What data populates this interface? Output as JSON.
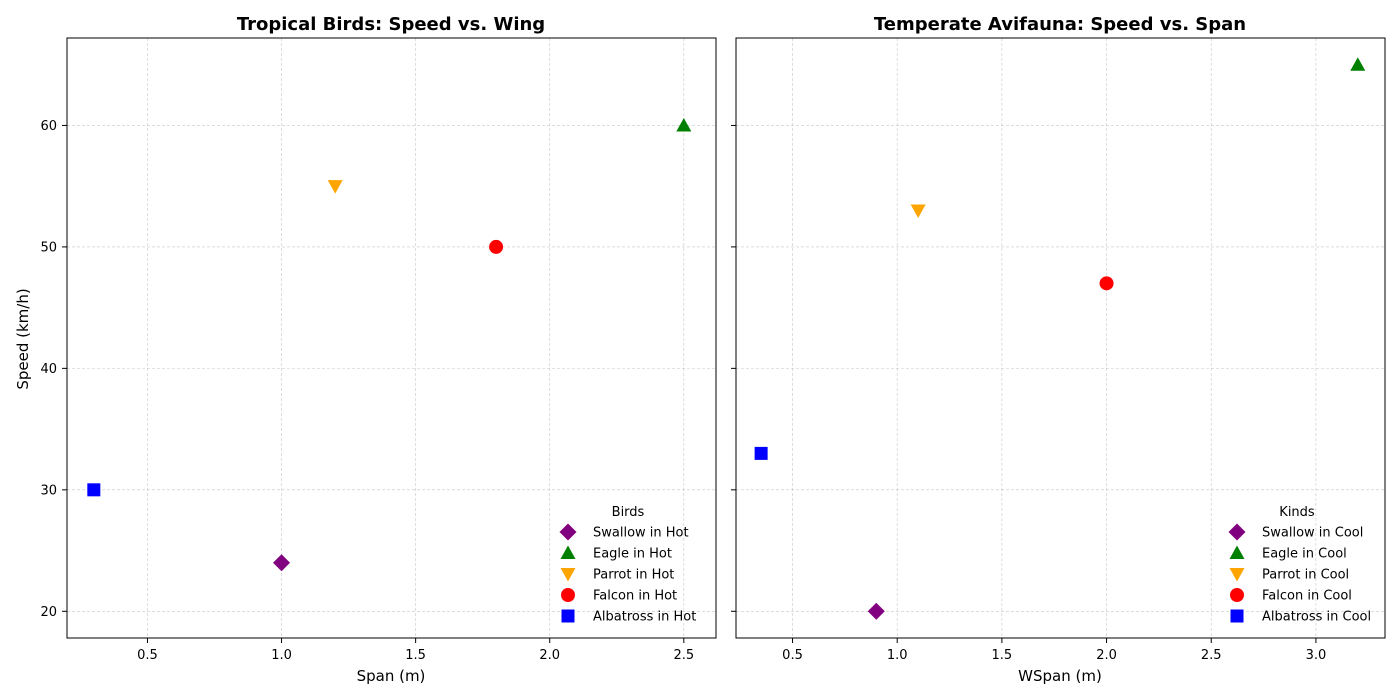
{
  "chart_data": [
    {
      "type": "scatter",
      "title": "Tropical Birds: Speed vs. Wing",
      "xlabel": "Span (m)",
      "ylabel": "Speed (km/h)",
      "xlim": [
        0.2,
        2.62
      ],
      "ylim": [
        17.8,
        67.2
      ],
      "xticks": [
        "0.5",
        "1.0",
        "1.5",
        "2.0",
        "2.5"
      ],
      "yticks": [
        "20",
        "30",
        "40",
        "50",
        "60"
      ],
      "grid": true,
      "legend": {
        "title": "Birds",
        "placement": "lower-right"
      },
      "series": [
        {
          "name": "Swallow in Hot",
          "marker": "diamond",
          "color": "#800080",
          "points": [
            [
              1.0,
              24
            ]
          ]
        },
        {
          "name": "Eagle in Hot",
          "marker": "triangle-up",
          "color": "#008000",
          "points": [
            [
              2.5,
              60
            ]
          ]
        },
        {
          "name": "Parrot in Hot",
          "marker": "triangle-down",
          "color": "#FFA500",
          "points": [
            [
              1.2,
              55
            ]
          ]
        },
        {
          "name": "Falcon in Hot",
          "marker": "circle",
          "color": "#FF0000",
          "points": [
            [
              1.8,
              50
            ]
          ]
        },
        {
          "name": "Albatross in Hot",
          "marker": "square",
          "color": "#0000FF",
          "points": [
            [
              0.3,
              30
            ]
          ]
        }
      ]
    },
    {
      "type": "scatter",
      "title": "Temperate Avifauna: Speed vs. Span",
      "xlabel": "WSpan (m)",
      "ylabel": "",
      "xlim": [
        0.23,
        3.33
      ],
      "ylim": [
        17.8,
        67.2
      ],
      "xticks": [
        "0.5",
        "1.0",
        "1.5",
        "2.0",
        "2.5",
        "3.0"
      ],
      "yticks": [
        "20",
        "30",
        "40",
        "50",
        "60"
      ],
      "grid": true,
      "legend": {
        "title": "Kinds",
        "placement": "lower-right"
      },
      "series": [
        {
          "name": "Swallow in Cool",
          "marker": "diamond",
          "color": "#800080",
          "points": [
            [
              0.9,
              20
            ]
          ]
        },
        {
          "name": "Eagle in Cool",
          "marker": "triangle-up",
          "color": "#008000",
          "points": [
            [
              3.2,
              65
            ]
          ]
        },
        {
          "name": "Parrot in Cool",
          "marker": "triangle-down",
          "color": "#FFA500",
          "points": [
            [
              1.1,
              53
            ]
          ]
        },
        {
          "name": "Falcon in Cool",
          "marker": "circle",
          "color": "#FF0000",
          "points": [
            [
              2.0,
              47
            ]
          ]
        },
        {
          "name": "Albatross in Cool",
          "marker": "square",
          "color": "#0000FF",
          "points": [
            [
              0.35,
              33
            ]
          ]
        }
      ]
    }
  ]
}
